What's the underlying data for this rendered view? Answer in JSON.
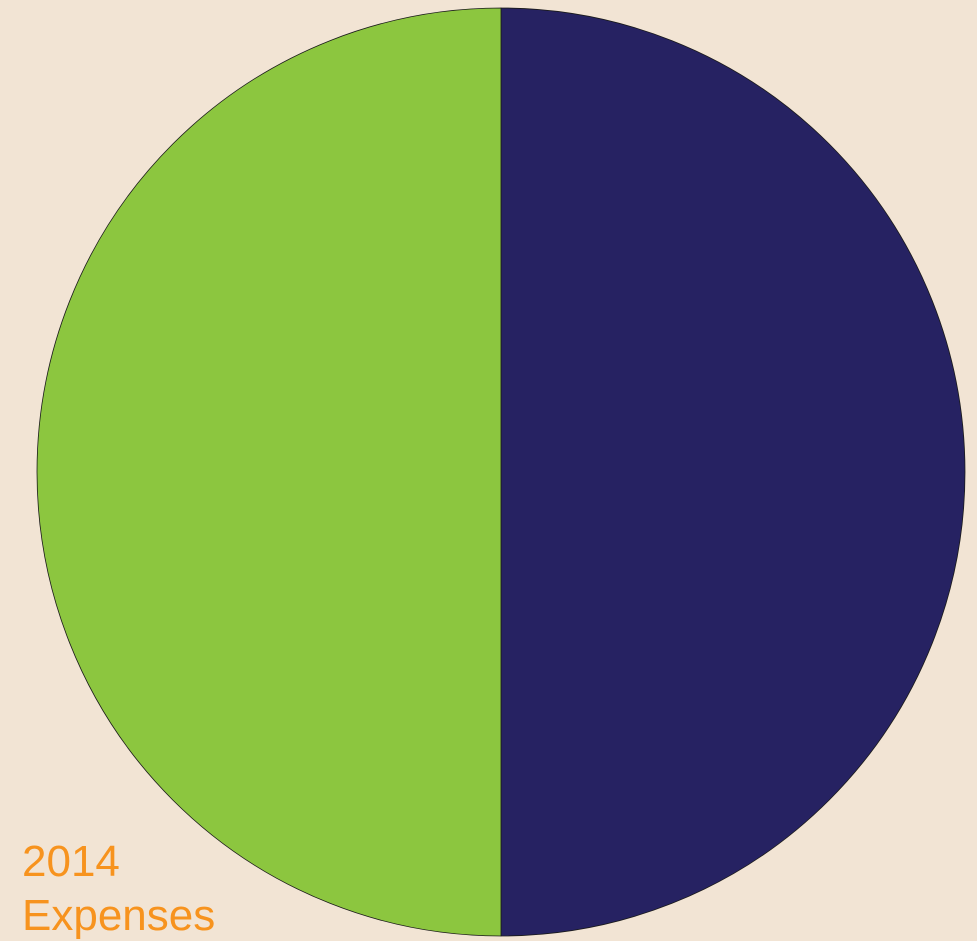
{
  "chart_data": {
    "type": "pie",
    "title": "2014",
    "subtitle": "Expenses",
    "values": [
      50,
      50
    ],
    "colors": [
      "#262262",
      "#8cc63f"
    ]
  }
}
